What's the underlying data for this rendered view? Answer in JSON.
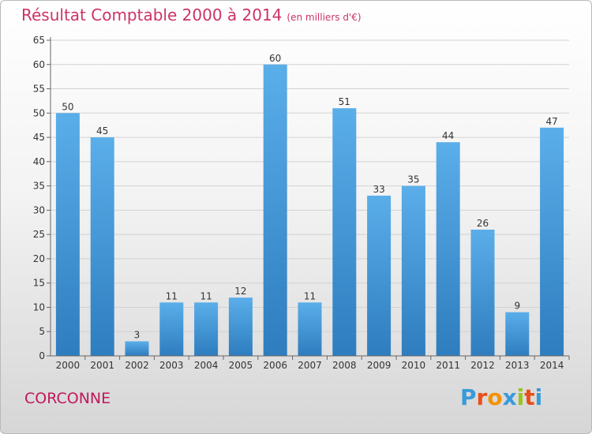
{
  "header": {
    "title": "Résultat Comptable 2000 à 2014",
    "subtitle": "(en milliers d'€)"
  },
  "footer": {
    "city": "CORCONNE",
    "logo": "Proxiti",
    "logo_colors": [
      "#3a9ad9",
      "#e84e1b",
      "#f39200",
      "#3a9ad9",
      "#9ac31c",
      "#e84e1b",
      "#3a9ad9"
    ]
  },
  "chart_data": {
    "type": "bar",
    "categories": [
      "2000",
      "2001",
      "2002",
      "2003",
      "2004",
      "2005",
      "2006",
      "2007",
      "2008",
      "2009",
      "2010",
      "2011",
      "2012",
      "2013",
      "2014"
    ],
    "values": [
      50,
      45,
      3,
      11,
      11,
      12,
      60,
      11,
      51,
      33,
      35,
      44,
      26,
      9,
      47
    ],
    "data_labels": [
      "50",
      "45",
      "3",
      "11",
      "11",
      "12",
      "60",
      "11",
      "51",
      "33",
      "35",
      "44",
      "26",
      "9",
      "47"
    ],
    "ylim": [
      0,
      65
    ],
    "yticks": [
      0,
      5,
      10,
      15,
      20,
      25,
      30,
      35,
      40,
      45,
      50,
      55,
      60,
      65
    ],
    "grid": true,
    "bar_color_top": "#5aaee9",
    "bar_color_bottom": "#2e7dbf"
  }
}
